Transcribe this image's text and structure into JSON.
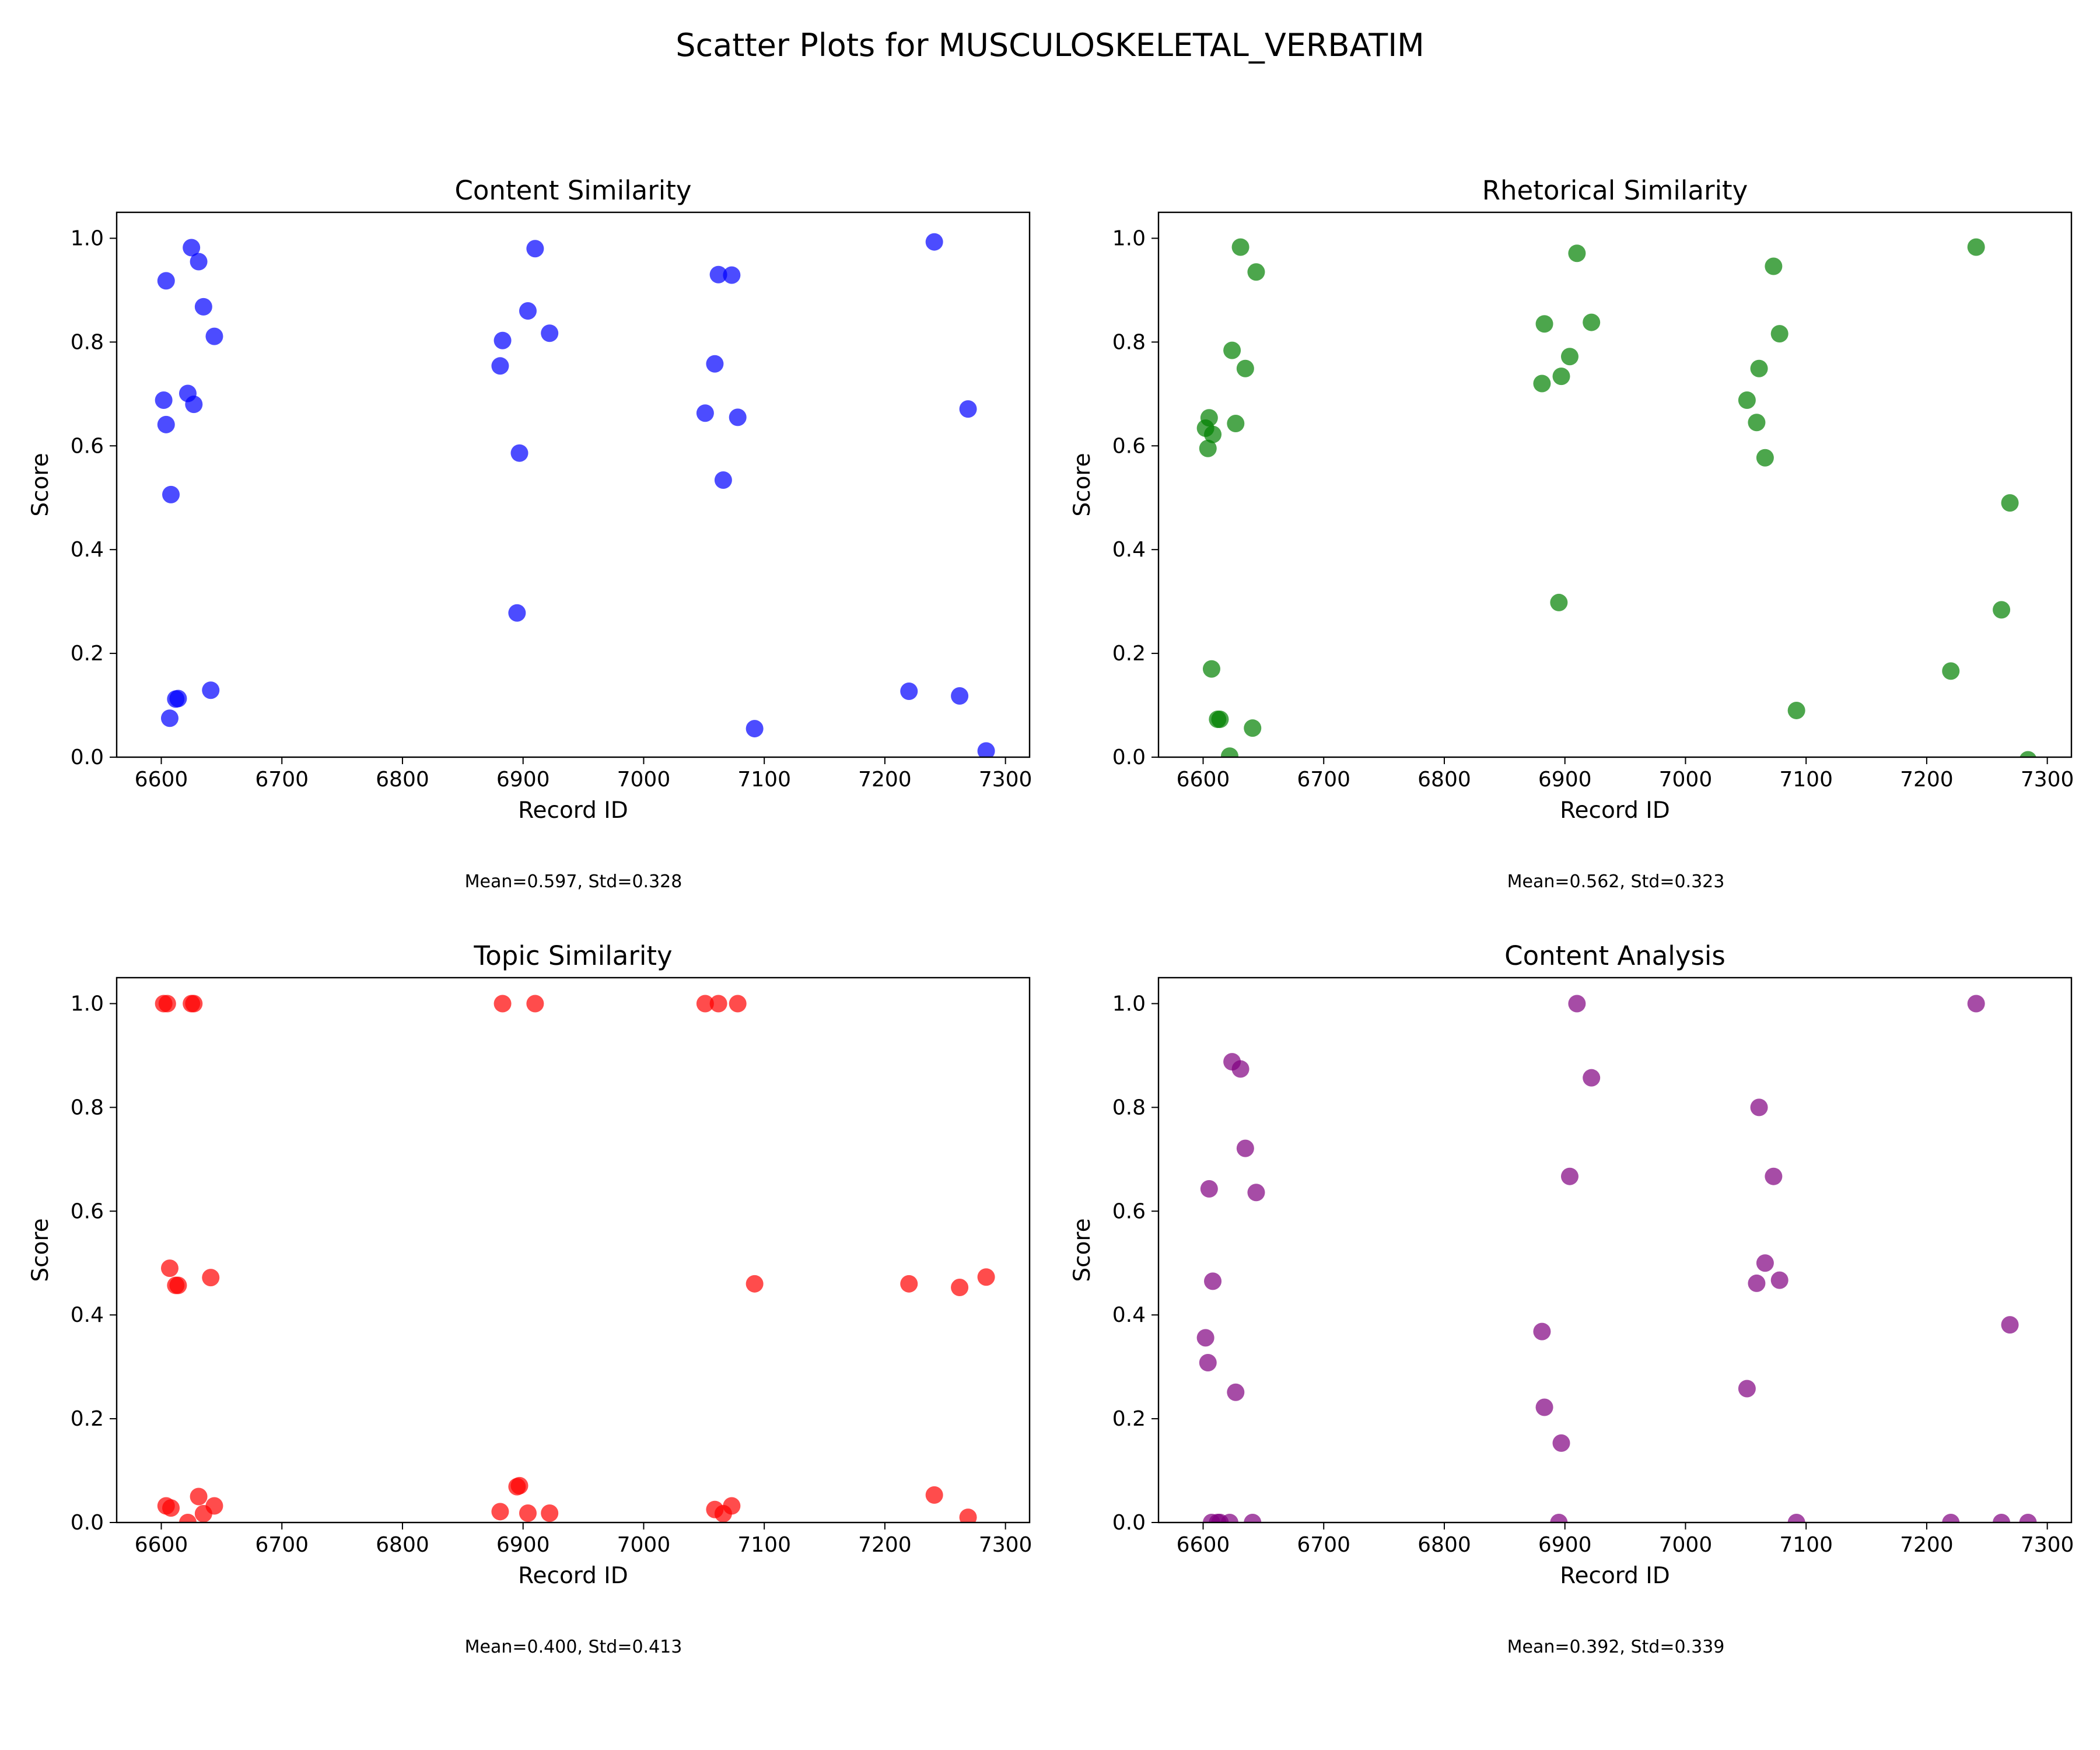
{
  "figure": {
    "title": "Scatter Plots for MUSCULOSKELETAL_VERBATIM"
  },
  "chart_data": [
    {
      "type": "scatter",
      "title": "Content Similarity",
      "xlabel": "Record ID",
      "ylabel": "Score",
      "xlim": [
        6563,
        7320
      ],
      "ylim": [
        0,
        1.05
      ],
      "xticks": [
        6600,
        6700,
        6800,
        6900,
        7000,
        7100,
        7200,
        7300
      ],
      "yticks": [
        0.0,
        0.2,
        0.4,
        0.6,
        0.8,
        1.0
      ],
      "grid": false,
      "color": "#0000ff",
      "stats_text": "Mean=0.597, Std=0.328",
      "points": [
        {
          "x": 6602,
          "y": 0.688
        },
        {
          "x": 6604,
          "y": 0.918
        },
        {
          "x": 6604,
          "y": 0.641
        },
        {
          "x": 6607,
          "y": 0.075
        },
        {
          "x": 6608,
          "y": 0.506
        },
        {
          "x": 6612,
          "y": 0.112
        },
        {
          "x": 6614,
          "y": 0.113
        },
        {
          "x": 6622,
          "y": 0.701
        },
        {
          "x": 6625,
          "y": 0.982
        },
        {
          "x": 6627,
          "y": 0.68
        },
        {
          "x": 6631,
          "y": 0.955
        },
        {
          "x": 6635,
          "y": 0.868
        },
        {
          "x": 6641,
          "y": 0.129
        },
        {
          "x": 6644,
          "y": 0.811
        },
        {
          "x": 6881,
          "y": 0.754
        },
        {
          "x": 6883,
          "y": 0.803
        },
        {
          "x": 6895,
          "y": 0.278
        },
        {
          "x": 6897,
          "y": 0.586
        },
        {
          "x": 6904,
          "y": 0.86
        },
        {
          "x": 6910,
          "y": 0.98
        },
        {
          "x": 6922,
          "y": 0.817
        },
        {
          "x": 7051,
          "y": 0.663
        },
        {
          "x": 7059,
          "y": 0.758
        },
        {
          "x": 7062,
          "y": 0.93
        },
        {
          "x": 7066,
          "y": 0.534
        },
        {
          "x": 7073,
          "y": 0.929
        },
        {
          "x": 7078,
          "y": 0.655
        },
        {
          "x": 7092,
          "y": 0.055
        },
        {
          "x": 7220,
          "y": 0.127
        },
        {
          "x": 7241,
          "y": 0.993
        },
        {
          "x": 7262,
          "y": 0.118
        },
        {
          "x": 7269,
          "y": 0.671
        },
        {
          "x": 7284,
          "y": 0.012
        }
      ]
    },
    {
      "type": "scatter",
      "title": "Rhetorical Similarity",
      "xlabel": "Record ID",
      "ylabel": "Score",
      "xlim": [
        6563,
        7320
      ],
      "ylim": [
        0,
        1.05
      ],
      "xticks": [
        6600,
        6700,
        6800,
        6900,
        7000,
        7100,
        7200,
        7300
      ],
      "yticks": [
        0.0,
        0.2,
        0.4,
        0.6,
        0.8,
        1.0
      ],
      "grid": false,
      "color": "#008000",
      "stats_text": "Mean=0.562, Std=0.323",
      "points": [
        {
          "x": 6602,
          "y": 0.634
        },
        {
          "x": 6604,
          "y": 0.595
        },
        {
          "x": 6605,
          "y": 0.654
        },
        {
          "x": 6607,
          "y": 0.17
        },
        {
          "x": 6608,
          "y": 0.622
        },
        {
          "x": 6612,
          "y": 0.073
        },
        {
          "x": 6614,
          "y": 0.073
        },
        {
          "x": 6622,
          "y": 0.002
        },
        {
          "x": 6624,
          "y": 0.784
        },
        {
          "x": 6627,
          "y": 0.643
        },
        {
          "x": 6631,
          "y": 0.983
        },
        {
          "x": 6635,
          "y": 0.749
        },
        {
          "x": 6641,
          "y": 0.056
        },
        {
          "x": 6644,
          "y": 0.935
        },
        {
          "x": 6881,
          "y": 0.72
        },
        {
          "x": 6883,
          "y": 0.835
        },
        {
          "x": 6895,
          "y": 0.298
        },
        {
          "x": 6897,
          "y": 0.734
        },
        {
          "x": 6904,
          "y": 0.772
        },
        {
          "x": 6910,
          "y": 0.971
        },
        {
          "x": 6922,
          "y": 0.838
        },
        {
          "x": 7051,
          "y": 0.688
        },
        {
          "x": 7059,
          "y": 0.645
        },
        {
          "x": 7061,
          "y": 0.749
        },
        {
          "x": 7066,
          "y": 0.577
        },
        {
          "x": 7073,
          "y": 0.946
        },
        {
          "x": 7078,
          "y": 0.816
        },
        {
          "x": 7092,
          "y": 0.09
        },
        {
          "x": 7220,
          "y": 0.166
        },
        {
          "x": 7241,
          "y": 0.983
        },
        {
          "x": 7262,
          "y": 0.284
        },
        {
          "x": 7269,
          "y": 0.49
        },
        {
          "x": 7284,
          "y": -0.005
        }
      ]
    },
    {
      "type": "scatter",
      "title": "Topic Similarity",
      "xlabel": "Record ID",
      "ylabel": "Score",
      "xlim": [
        6563,
        7320
      ],
      "ylim": [
        0,
        1.05
      ],
      "xticks": [
        6600,
        6700,
        6800,
        6900,
        7000,
        7100,
        7200,
        7300
      ],
      "yticks": [
        0.0,
        0.2,
        0.4,
        0.6,
        0.8,
        1.0
      ],
      "grid": false,
      "color": "#ff0000",
      "stats_text": "Mean=0.400, Std=0.413",
      "points": [
        {
          "x": 6602,
          "y": 1.0
        },
        {
          "x": 6604,
          "y": 0.032
        },
        {
          "x": 6605,
          "y": 1.0
        },
        {
          "x": 6607,
          "y": 0.49
        },
        {
          "x": 6608,
          "y": 0.028
        },
        {
          "x": 6612,
          "y": 0.457
        },
        {
          "x": 6614,
          "y": 0.457
        },
        {
          "x": 6622,
          "y": 0.0
        },
        {
          "x": 6625,
          "y": 1.0
        },
        {
          "x": 6627,
          "y": 1.0
        },
        {
          "x": 6631,
          "y": 0.05
        },
        {
          "x": 6635,
          "y": 0.017
        },
        {
          "x": 6641,
          "y": 0.472
        },
        {
          "x": 6644,
          "y": 0.032
        },
        {
          "x": 6881,
          "y": 0.021
        },
        {
          "x": 6883,
          "y": 1.0
        },
        {
          "x": 6895,
          "y": 0.069
        },
        {
          "x": 6897,
          "y": 0.071
        },
        {
          "x": 6904,
          "y": 0.018
        },
        {
          "x": 6910,
          "y": 1.0
        },
        {
          "x": 6922,
          "y": 0.018
        },
        {
          "x": 7051,
          "y": 1.0
        },
        {
          "x": 7059,
          "y": 0.025
        },
        {
          "x": 7062,
          "y": 1.0
        },
        {
          "x": 7066,
          "y": 0.017
        },
        {
          "x": 7073,
          "y": 0.032
        },
        {
          "x": 7078,
          "y": 1.0
        },
        {
          "x": 7092,
          "y": 0.46
        },
        {
          "x": 7220,
          "y": 0.46
        },
        {
          "x": 7241,
          "y": 0.053
        },
        {
          "x": 7262,
          "y": 0.453
        },
        {
          "x": 7269,
          "y": 0.01
        },
        {
          "x": 7284,
          "y": 0.473
        }
      ]
    },
    {
      "type": "scatter",
      "title": "Content Analysis",
      "xlabel": "Record ID",
      "ylabel": "Score",
      "xlim": [
        6563,
        7320
      ],
      "ylim": [
        0,
        1.05
      ],
      "xticks": [
        6600,
        6700,
        6800,
        6900,
        7000,
        7100,
        7200,
        7300
      ],
      "yticks": [
        0.0,
        0.2,
        0.4,
        0.6,
        0.8,
        1.0
      ],
      "grid": false,
      "color": "#800080",
      "stats_text": "Mean=0.392, Std=0.339",
      "points": [
        {
          "x": 6602,
          "y": 0.356
        },
        {
          "x": 6604,
          "y": 0.308
        },
        {
          "x": 6605,
          "y": 0.643
        },
        {
          "x": 6607,
          "y": 0.0
        },
        {
          "x": 6608,
          "y": 0.465
        },
        {
          "x": 6612,
          "y": 0.0
        },
        {
          "x": 6614,
          "y": 0.0
        },
        {
          "x": 6622,
          "y": 0.0
        },
        {
          "x": 6624,
          "y": 0.888
        },
        {
          "x": 6627,
          "y": 0.251
        },
        {
          "x": 6631,
          "y": 0.874
        },
        {
          "x": 6635,
          "y": 0.721
        },
        {
          "x": 6641,
          "y": 0.0
        },
        {
          "x": 6644,
          "y": 0.636
        },
        {
          "x": 6881,
          "y": 0.368
        },
        {
          "x": 6883,
          "y": 0.222
        },
        {
          "x": 6895,
          "y": 0.0
        },
        {
          "x": 6897,
          "y": 0.153
        },
        {
          "x": 6904,
          "y": 0.667
        },
        {
          "x": 6910,
          "y": 1.0
        },
        {
          "x": 6922,
          "y": 0.857
        },
        {
          "x": 7051,
          "y": 0.258
        },
        {
          "x": 7059,
          "y": 0.461
        },
        {
          "x": 7061,
          "y": 0.8
        },
        {
          "x": 7066,
          "y": 0.5
        },
        {
          "x": 7073,
          "y": 0.667
        },
        {
          "x": 7078,
          "y": 0.467
        },
        {
          "x": 7092,
          "y": 0.0
        },
        {
          "x": 7220,
          "y": 0.0
        },
        {
          "x": 7241,
          "y": 1.0
        },
        {
          "x": 7262,
          "y": 0.0
        },
        {
          "x": 7269,
          "y": 0.381
        },
        {
          "x": 7284,
          "y": 0.0
        }
      ]
    }
  ]
}
